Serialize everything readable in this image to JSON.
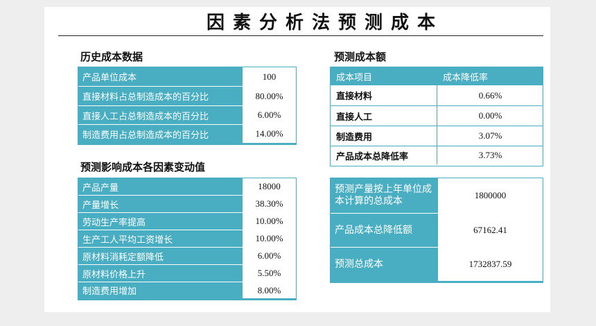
{
  "title": "因素分析法预测成本",
  "history": {
    "title": "历史成本数据",
    "rows": [
      {
        "label": "产品单位成本",
        "value": "100"
      },
      {
        "label": "直接材料占总制造成本的百分比",
        "value": "80.00%"
      },
      {
        "label": "直接人工占总制造成本的百分比",
        "value": "6.00%"
      },
      {
        "label": "制造费用占总制造成本的百分比",
        "value": "14.00%"
      }
    ]
  },
  "factors": {
    "title": "预测影响成本各因素变动值",
    "rows": [
      {
        "label": "产品产量",
        "value": "18000"
      },
      {
        "label": "产量增长",
        "value": "38.30%"
      },
      {
        "label": "劳动生产率提高",
        "value": "10.00%"
      },
      {
        "label": "生产工人平均工资增长",
        "value": "10.00%"
      },
      {
        "label": "原材料消耗定额降低",
        "value": "6.00%"
      },
      {
        "label": "原材料价格上升",
        "value": "5.50%"
      },
      {
        "label": "制造费用增加",
        "value": "8.00%"
      }
    ]
  },
  "forecast": {
    "title": "预测成本额",
    "headers": [
      "成本项目",
      "成本降低率"
    ],
    "rows": [
      {
        "label": "直接材料",
        "value": "0.66%"
      },
      {
        "label": "直接人工",
        "value": "0.00%"
      },
      {
        "label": "制造费用",
        "value": "3.07%"
      },
      {
        "label": "产品成本总降低率",
        "value": "3.73%"
      }
    ]
  },
  "totals": {
    "rows": [
      {
        "label": "预测产量按上年单位成本计算的总成本",
        "value": "1800000"
      },
      {
        "label": "产品成本总降低额",
        "value": "67162.41"
      },
      {
        "label": "预测总成本",
        "value": "1732837.59"
      }
    ]
  },
  "colors": {
    "accent": "#4aaec3",
    "background": "#ffffff"
  }
}
